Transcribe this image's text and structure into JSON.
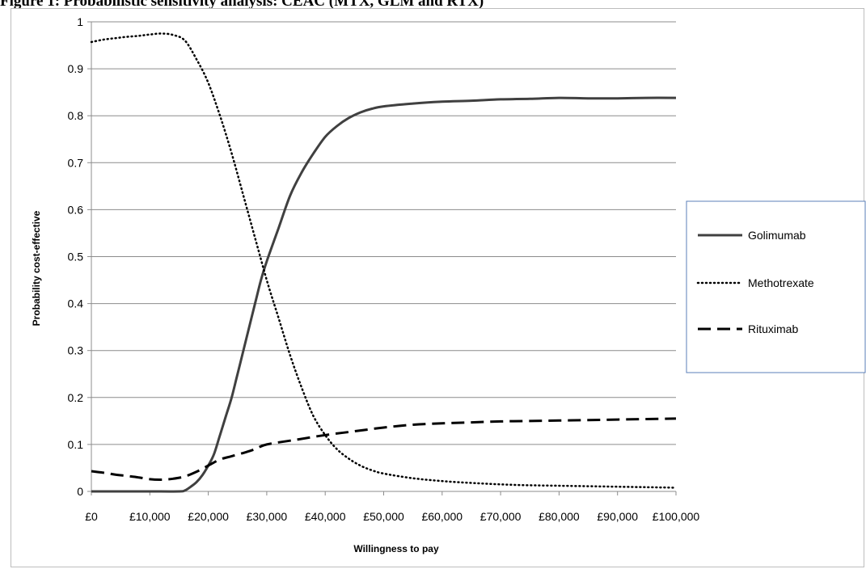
{
  "figure_title": "Figure 1: Probabilistic sensitivity analysis: CEAC (MTX, GLM and RTX)",
  "chart_data": {
    "type": "line",
    "title": "",
    "xlabel": "Willingness to pay",
    "ylabel": "Probability cost-effective",
    "xlim": [
      0,
      100000
    ],
    "ylim": [
      0,
      1
    ],
    "grid": true,
    "legend_position": "right",
    "x_ticks": [
      "£0",
      "£10,000",
      "£20,000",
      "£30,000",
      "£40,000",
      "£50,000",
      "£60,000",
      "£70,000",
      "£80,000",
      "£90,000",
      "£100,000"
    ],
    "y_ticks": [
      "0",
      "0.1",
      "0.2",
      "0.3",
      "0.4",
      "0.5",
      "0.6",
      "0.7",
      "0.8",
      "0.9",
      "1"
    ],
    "series": [
      {
        "name": "Golimumab",
        "style": "solid",
        "color": "#404040",
        "x": [
          0,
          5000,
          10000,
          15000,
          16000,
          17000,
          18000,
          19000,
          20000,
          21000,
          22000,
          23000,
          24000,
          25000,
          26000,
          27000,
          28000,
          29000,
          30000,
          32000,
          34000,
          36000,
          38000,
          40000,
          42000,
          44000,
          46000,
          48000,
          50000,
          55000,
          60000,
          65000,
          70000,
          75000,
          80000,
          85000,
          90000,
          95000,
          100000
        ],
        "y": [
          0,
          0,
          0,
          0,
          0.002,
          0.01,
          0.02,
          0.035,
          0.055,
          0.08,
          0.12,
          0.16,
          0.2,
          0.25,
          0.3,
          0.35,
          0.4,
          0.45,
          0.49,
          0.56,
          0.63,
          0.68,
          0.72,
          0.755,
          0.778,
          0.795,
          0.807,
          0.815,
          0.82,
          0.826,
          0.83,
          0.832,
          0.835,
          0.836,
          0.838,
          0.837,
          0.837,
          0.838,
          0.838
        ]
      },
      {
        "name": "Methotrexate",
        "style": "dotted",
        "color": "#000000",
        "x": [
          0,
          2000,
          4000,
          6000,
          8000,
          10000,
          12000,
          14000,
          16000,
          18000,
          20000,
          22000,
          24000,
          26000,
          28000,
          30000,
          32000,
          34000,
          36000,
          38000,
          40000,
          42000,
          44000,
          46000,
          48000,
          50000,
          55000,
          60000,
          65000,
          70000,
          75000,
          80000,
          85000,
          90000,
          95000,
          100000
        ],
        "y": [
          0.957,
          0.962,
          0.965,
          0.968,
          0.97,
          0.973,
          0.975,
          0.972,
          0.96,
          0.92,
          0.87,
          0.8,
          0.72,
          0.63,
          0.54,
          0.45,
          0.37,
          0.29,
          0.22,
          0.16,
          0.12,
          0.09,
          0.07,
          0.055,
          0.045,
          0.038,
          0.028,
          0.022,
          0.018,
          0.015,
          0.013,
          0.012,
          0.011,
          0.01,
          0.009,
          0.008
        ]
      },
      {
        "name": "Rituximab",
        "style": "dashed",
        "color": "#000000",
        "x": [
          0,
          2000,
          4000,
          6000,
          8000,
          10000,
          12000,
          14000,
          16000,
          18000,
          20000,
          22000,
          24000,
          26000,
          28000,
          30000,
          35000,
          40000,
          45000,
          50000,
          55000,
          60000,
          65000,
          70000,
          75000,
          80000,
          85000,
          90000,
          95000,
          100000
        ],
        "y": [
          0.043,
          0.04,
          0.036,
          0.033,
          0.03,
          0.026,
          0.025,
          0.027,
          0.032,
          0.042,
          0.055,
          0.068,
          0.075,
          0.082,
          0.09,
          0.1,
          0.11,
          0.12,
          0.128,
          0.136,
          0.142,
          0.145,
          0.147,
          0.149,
          0.15,
          0.151,
          0.152,
          0.153,
          0.154,
          0.155
        ]
      }
    ]
  }
}
